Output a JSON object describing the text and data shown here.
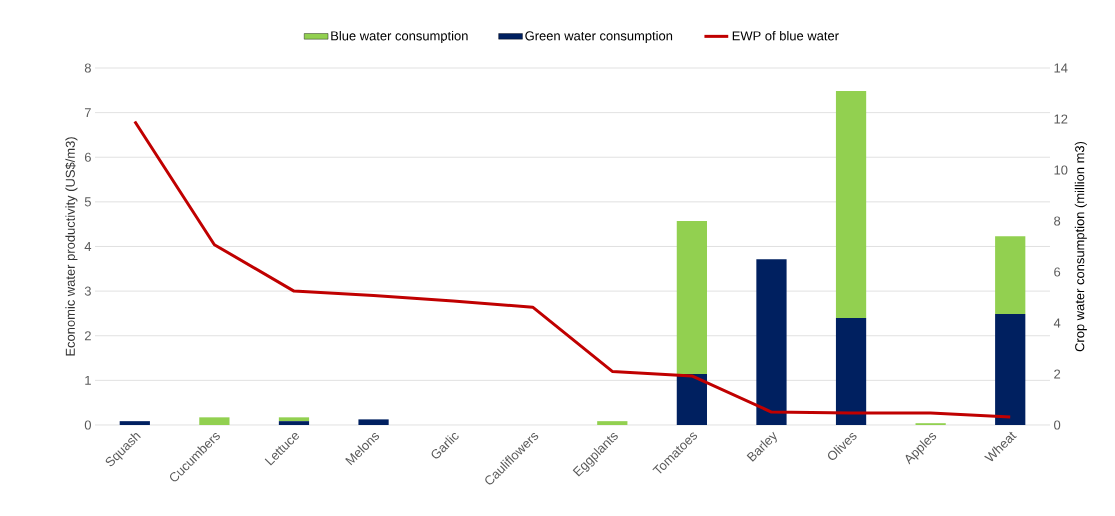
{
  "chart_data": {
    "type": "bar",
    "stacked": true,
    "categories": [
      "Squash",
      "Cucumbers",
      "Lettuce",
      "Melons",
      "Garlic",
      "Cauliflowers",
      "Eggplants",
      "Tomatoes",
      "Barley",
      "Olives",
      "Apples",
      "Wheat"
    ],
    "ylabel": "Economic water productivity (US$/m3)",
    "y2label": "Crop water consumption (million m3)",
    "ylim": [
      0,
      8
    ],
    "yticks": [
      0,
      1,
      2,
      3,
      4,
      5,
      6,
      7,
      8
    ],
    "y2lim": [
      0,
      14
    ],
    "y2ticks": [
      0,
      2,
      4,
      6,
      8,
      10,
      12,
      14
    ],
    "grid": "y",
    "legend": "top",
    "series": [
      {
        "name": "Green water consumption",
        "type": "bar",
        "axis": "y2",
        "color": "#002060",
        "values": [
          0.15,
          0,
          0.15,
          0.22,
          0,
          0,
          0,
          2.0,
          6.5,
          4.2,
          0,
          4.35
        ]
      },
      {
        "name": "Blue water consumption",
        "type": "bar",
        "axis": "y2",
        "color": "#92d050",
        "values": [
          0,
          0.3,
          0.15,
          0,
          0,
          0,
          0.15,
          6.0,
          0,
          8.9,
          0.07,
          3.05
        ]
      },
      {
        "name": "EWP of blue water",
        "type": "line",
        "color": "#c00000",
        "values": [
          6.8,
          4.04,
          3.0,
          2.9,
          2.78,
          2.64,
          1.2,
          1.1,
          0.29,
          0.27,
          0.27,
          0.18
        ]
      }
    ]
  }
}
